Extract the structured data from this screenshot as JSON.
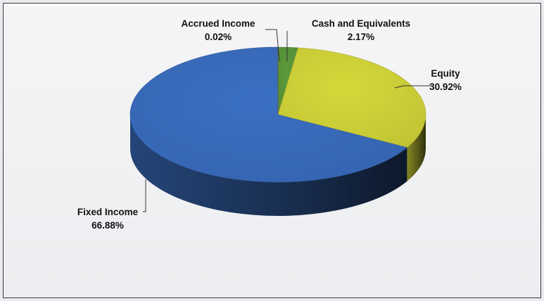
{
  "chart_data": {
    "type": "pie",
    "title": "",
    "slices": [
      {
        "label": "Cash and Equivalents",
        "value": 2.17,
        "display": "2.17%",
        "color": "#5b9a3c"
      },
      {
        "label": "Equity",
        "value": 30.92,
        "display": "30.92%",
        "color": "#d6d93a"
      },
      {
        "label": "Fixed Income",
        "value": 66.88,
        "display": "66.88%",
        "color": "#3b6fc2"
      },
      {
        "label": "Accrued Income",
        "value": 0.02,
        "display": "0.02%",
        "color": "#8c6b3e"
      }
    ],
    "style": "3d-pie",
    "legend": "none"
  }
}
